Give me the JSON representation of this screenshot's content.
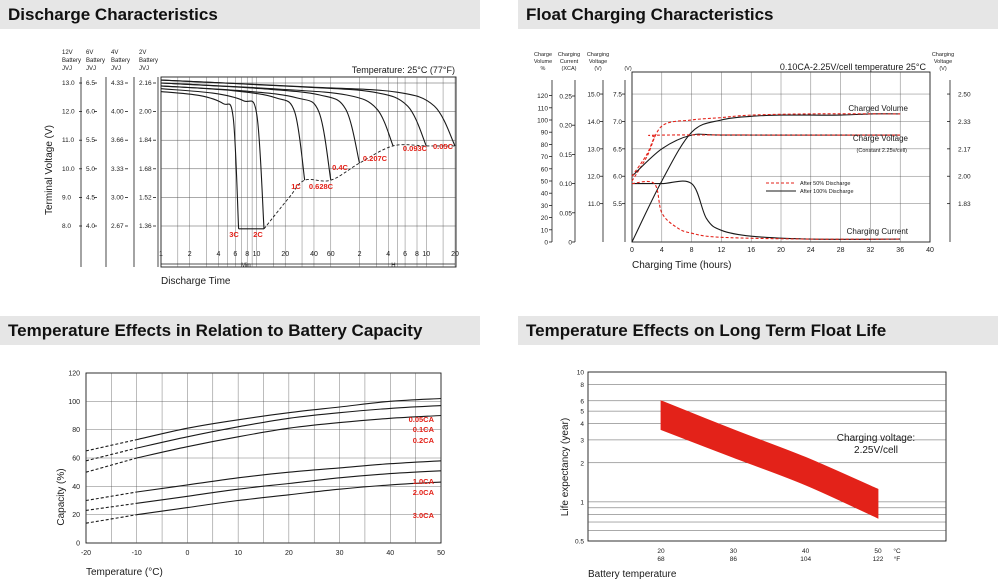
{
  "colors": {
    "red": "#e32219",
    "line": "#1a1a1a",
    "grid": "#555555",
    "header_bg": "#e6e6e6"
  },
  "discharge": {
    "header": "Discharge Characteristics",
    "col_headers": [
      [
        "12V",
        "Battery",
        "JVJ"
      ],
      [
        "6V",
        "Battery",
        "JVJ"
      ],
      [
        "4V",
        "Battery",
        "JVJ"
      ],
      [
        "2V",
        "Battery",
        "JVJ"
      ]
    ],
    "voltage_rows": [
      [
        "13.0",
        "6.5",
        "4.33",
        "2.16"
      ],
      [
        "12.0",
        "6.0",
        "4.00",
        "2.00"
      ],
      [
        "11.0",
        "5.5",
        "3.66",
        "1.84"
      ],
      [
        "10.0",
        "5.0",
        "3.33",
        "1.68"
      ],
      [
        "9.0",
        "4.5",
        "3.00",
        "1.52"
      ],
      [
        "8.0",
        "4.0",
        "2.67",
        "1.36"
      ]
    ],
    "ylabel": "Terminal Voltage (V)",
    "temperature": "Temperature: 25°C (77°F)",
    "x_ticks_min": [
      "1",
      "2",
      "4",
      "6",
      "8",
      "10",
      "20",
      "40",
      "60"
    ],
    "x_ticks_h": [
      "2",
      "4",
      "6",
      "8",
      "10",
      "20"
    ],
    "min_label": "Min",
    "h_label": "H",
    "xlabel": "Discharge Time",
    "rates": [
      "3C",
      "2C",
      "1C",
      "0.628C",
      "0.4C",
      "0.207C",
      "0.093C",
      "0.05C"
    ]
  },
  "float": {
    "header": "Float Charging Characteristics",
    "col_headers": [
      [
        "Charge",
        "Volume",
        "%"
      ],
      [
        "Charging",
        "Current",
        "(XCA)"
      ],
      [
        "Charging",
        "Voltage",
        "(V)"
      ],
      [
        "(V)"
      ]
    ],
    "right_header": [
      "Charging",
      "Voltage",
      "(V)"
    ],
    "volume_ticks": [
      "120",
      "110",
      "100",
      "90",
      "80",
      "70",
      "60",
      "50",
      "40",
      "30",
      "20",
      "10",
      "0"
    ],
    "current_ticks": [
      "0.25",
      "0.20",
      "0.15",
      "0.10",
      "0.05",
      "0"
    ],
    "voltage_ticks": [
      "15.0",
      "14.0",
      "13.0",
      "12.0",
      "11.0"
    ],
    "inner_ticks": [
      "7.5",
      "7.0",
      "6.5",
      "6.0",
      "5.5"
    ],
    "right_ticks": [
      "2.50",
      "2.33",
      "2.17",
      "2.00",
      "1.83"
    ],
    "x_ticks": [
      "0",
      "4",
      "8",
      "12",
      "16",
      "20",
      "24",
      "28",
      "32",
      "36",
      "40"
    ],
    "subtitle": "0.10CA-2.25V/cell  temperature 25°C",
    "labels": {
      "charged_volume": "Charged Volume",
      "charge_voltage": "Charge Voltage",
      "charge_voltage_note": "(Constant 2.25v/cell)",
      "charging_current": "Charging Current"
    },
    "legend": [
      "After  50% Discharge",
      "After 100% Discharge"
    ],
    "xlabel": "Charging Time (hours)"
  },
  "temp_capacity": {
    "header": "Temperature Effects in Relation to Battery Capacity",
    "ylabel": "Capacity (%)",
    "xlabel": "Temperature (°C)",
    "y_ticks": [
      "120",
      "100",
      "80",
      "60",
      "40",
      "20",
      "0"
    ],
    "x_ticks": [
      "-20",
      "-10",
      "0",
      "10",
      "20",
      "30",
      "40",
      "50"
    ],
    "rates": [
      "0.05CA",
      "0.1CA",
      "0.2CA",
      "1.0CA",
      "2.0CA",
      "3.0CA"
    ]
  },
  "float_life": {
    "header": "Temperature Effects on Long Term Float Life",
    "ylabel": "Life expectancy (year)",
    "xlabel": "Battery temperature",
    "y_ticks": [
      "10",
      "8",
      "6",
      "5",
      "4",
      "3",
      "2",
      "1",
      "0.5"
    ],
    "x_ticks_c": [
      "20",
      "30",
      "40",
      "50"
    ],
    "x_ticks_f": [
      "68",
      "86",
      "104",
      "122"
    ],
    "unit_c": "°C",
    "unit_f": "°F",
    "note": [
      "Charging voltage:",
      "2.25V/cell"
    ]
  },
  "chart_data": [
    {
      "type": "line",
      "title": "Discharge Characteristics",
      "ylabel": "Terminal Voltage (V)",
      "xlabel": "Discharge Time",
      "x_scale": "log (1 min – 20 h)",
      "temperature": "Temperature: 25°C (77°F)",
      "series": [
        {
          "name": "3C",
          "end_time": "6.5 min",
          "start_v_12v": 12.7,
          "end_v_12v": 7.9
        },
        {
          "name": "2C",
          "end_time": "12 min",
          "start_v_12v": 12.8,
          "end_v_12v": 7.9
        },
        {
          "name": "1C",
          "end_time": "32 min",
          "start_v_12v": 12.9,
          "end_v_12v": 9.6
        },
        {
          "name": "0.628C",
          "end_time": "60 min",
          "start_v_12v": 12.9,
          "end_v_12v": 9.6
        },
        {
          "name": "0.4C",
          "end_time": "2 h",
          "start_v_12v": 13.0,
          "end_v_12v": 10.2
        },
        {
          "name": "0.207C",
          "end_time": "4.5 h",
          "start_v_12v": 13.0,
          "end_v_12v": 10.8
        },
        {
          "name": "0.093C",
          "end_time": "10 h",
          "start_v_12v": 13.1,
          "end_v_12v": 10.8
        },
        {
          "name": "0.05C",
          "end_time": "20 h",
          "start_v_12v": 13.1,
          "end_v_12v": 10.8
        }
      ]
    },
    {
      "type": "line",
      "title": "Float Charging Characteristics",
      "xlabel": "Charging Time (hours)",
      "x_range": [
        0,
        40
      ],
      "series": [
        {
          "name": "Charged Volume (After 100% Discharge)",
          "axis": "%",
          "x": [
            0,
            4,
            8,
            12,
            16,
            20,
            24,
            28,
            32,
            36
          ],
          "y": [
            0,
            50,
            90,
            100,
            103,
            104,
            104,
            104,
            105,
            105
          ]
        },
        {
          "name": "Charged Volume (After 50% Discharge)",
          "axis": "%",
          "x": [
            0,
            2,
            4,
            8,
            12,
            16,
            24,
            36
          ],
          "y": [
            50,
            70,
            95,
            100,
            102,
            104,
            105,
            105
          ]
        },
        {
          "name": "Charge Voltage (After 100% Discharge)",
          "axis": "V",
          "x": [
            0,
            4,
            8,
            12,
            24,
            36
          ],
          "y": [
            12.0,
            13.0,
            13.5,
            13.5,
            13.5,
            13.5
          ]
        },
        {
          "name": "Charge Voltage (After 50% Discharge)",
          "axis": "V",
          "x": [
            0,
            2,
            3,
            4,
            24,
            36
          ],
          "y": [
            12.0,
            12.8,
            13.4,
            13.5,
            13.5,
            13.5
          ]
        },
        {
          "name": "Charging Current (After 100% Discharge)",
          "axis": "XCA",
          "x": [
            0,
            4,
            8,
            10,
            12,
            16,
            24,
            36
          ],
          "y": [
            0.1,
            0.1,
            0.1,
            0.04,
            0.02,
            0.01,
            0.005,
            0.005
          ]
        },
        {
          "name": "Charging Current (After 50% Discharge)",
          "axis": "XCA",
          "x": [
            0,
            3,
            4,
            6,
            8,
            12,
            24,
            36
          ],
          "y": [
            0.1,
            0.1,
            0.05,
            0.025,
            0.015,
            0.008,
            0.005,
            0.005
          ]
        }
      ]
    },
    {
      "type": "line",
      "title": "Temperature Effects in Relation to Battery Capacity",
      "xlabel": "Temperature (°C)",
      "ylabel": "Capacity (%)",
      "xlim": [
        -20,
        50
      ],
      "ylim": [
        0,
        120
      ],
      "x": [
        -20,
        -10,
        0,
        10,
        20,
        30,
        40,
        50
      ],
      "series": [
        {
          "name": "0.05CA",
          "y": [
            65,
            73,
            81,
            87,
            92,
            96,
            100,
            102
          ]
        },
        {
          "name": "0.1CA",
          "y": [
            58,
            67,
            75,
            82,
            88,
            92,
            95,
            97
          ]
        },
        {
          "name": "0.2CA",
          "y": [
            50,
            60,
            68,
            75,
            81,
            85,
            88,
            90
          ]
        },
        {
          "name": "1.0CA",
          "y": [
            30,
            36,
            41,
            46,
            50,
            53,
            56,
            58
          ]
        },
        {
          "name": "2.0CA",
          "y": [
            23,
            28,
            33,
            38,
            42,
            46,
            49,
            51
          ]
        },
        {
          "name": "3.0CA",
          "y": [
            14,
            20,
            25,
            30,
            34,
            38,
            41,
            43
          ]
        }
      ]
    },
    {
      "type": "area",
      "title": "Temperature Effects on Long Term Float Life",
      "xlabel": "Battery temperature",
      "ylabel": "Life expectancy (year)",
      "y_scale": "log",
      "ylim": [
        0.5,
        10
      ],
      "x": [
        20,
        30,
        40,
        50
      ],
      "upper": [
        6.0,
        3.6,
        2.2,
        1.25
      ],
      "lower": [
        3.6,
        2.2,
        1.35,
        0.75
      ],
      "annotation": "Charging voltage: 2.25V/cell"
    }
  ]
}
